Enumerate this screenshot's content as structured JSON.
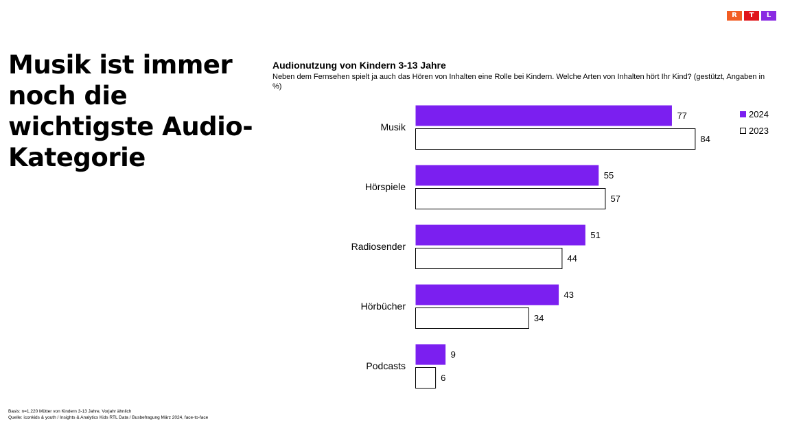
{
  "logo": {
    "letters": [
      "R",
      "T",
      "L"
    ],
    "colors": [
      "#F25D23",
      "#E0151B",
      "#8A2BE2"
    ]
  },
  "headline": "Musik ist immer noch die wichtigste Audio-Kategorie",
  "chart_data": {
    "type": "bar",
    "orientation": "horizontal",
    "title": "Audionutzung von Kindern 3-13 Jahre",
    "subtitle": "Neben dem Fernsehen spielt ja auch das Hören von Inhalten eine Rolle bei Kindern. Welche Arten von Inhalten hört Ihr Kind? (gestützt, Angaben in %)",
    "categories": [
      "Musik",
      "Hörspiele",
      "Radiosender",
      "Hörbücher",
      "Podcasts"
    ],
    "series": [
      {
        "name": "2024",
        "values": [
          77,
          55,
          51,
          43,
          9
        ],
        "color": "#7B1FF0"
      },
      {
        "name": "2023",
        "values": [
          84,
          57,
          44,
          34,
          6
        ],
        "color": "#FFFFFF"
      }
    ],
    "xlim": [
      0,
      100
    ],
    "grid": false,
    "legend_position": "top-right"
  },
  "footnote": {
    "basis": "Basis: n=1.220 Mütter von Kindern 3-13 Jahre, Vorjahr ähnlich",
    "source": "Quelle: iconkids & youth / Insights & Analytics Kids RTL Data / Busbefragung März 2024, face-to-face"
  }
}
